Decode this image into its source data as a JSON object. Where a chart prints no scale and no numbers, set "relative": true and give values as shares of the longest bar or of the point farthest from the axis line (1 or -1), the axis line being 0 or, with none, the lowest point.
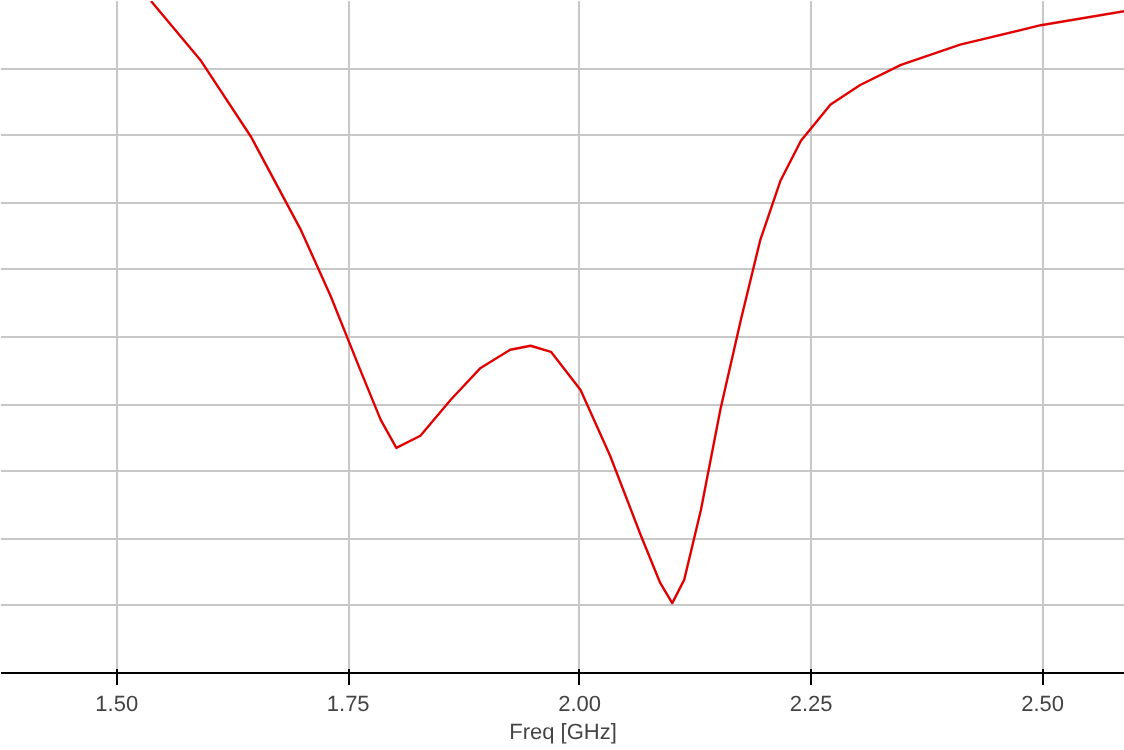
{
  "chart_data": {
    "type": "line",
    "relative": true,
    "xlabel": "Freq [GHz]",
    "xlim": [
      1.375,
      2.589
    ],
    "xticks": [
      {
        "value": 1.5,
        "label": "1.50"
      },
      {
        "value": 1.75,
        "label": "1.75"
      },
      {
        "value": 2.0,
        "label": "2.00"
      },
      {
        "value": 2.25,
        "label": "2.25"
      },
      {
        "value": 2.5,
        "label": "2.50"
      }
    ],
    "grid": true,
    "line_style": "solid",
    "series": [
      {
        "color": "#e00000",
        "x": [
          1.537,
          1.591,
          1.645,
          1.699,
          1.731,
          1.763,
          1.785,
          1.802,
          1.828,
          1.861,
          1.893,
          1.925,
          1.947,
          1.969,
          2.001,
          2.033,
          2.066,
          2.087,
          2.1,
          2.113,
          2.131,
          2.152,
          2.174,
          2.195,
          2.217,
          2.239,
          2.271,
          2.303,
          2.347,
          2.411,
          2.498,
          2.589
        ],
        "values": [
          1.0,
          0.911,
          0.798,
          0.659,
          0.561,
          0.451,
          0.377,
          0.335,
          0.353,
          0.407,
          0.454,
          0.481,
          0.487,
          0.478,
          0.421,
          0.323,
          0.205,
          0.134,
          0.104,
          0.139,
          0.243,
          0.392,
          0.525,
          0.644,
          0.733,
          0.792,
          0.846,
          0.875,
          0.905,
          0.935,
          0.964,
          0.985
        ]
      }
    ]
  }
}
